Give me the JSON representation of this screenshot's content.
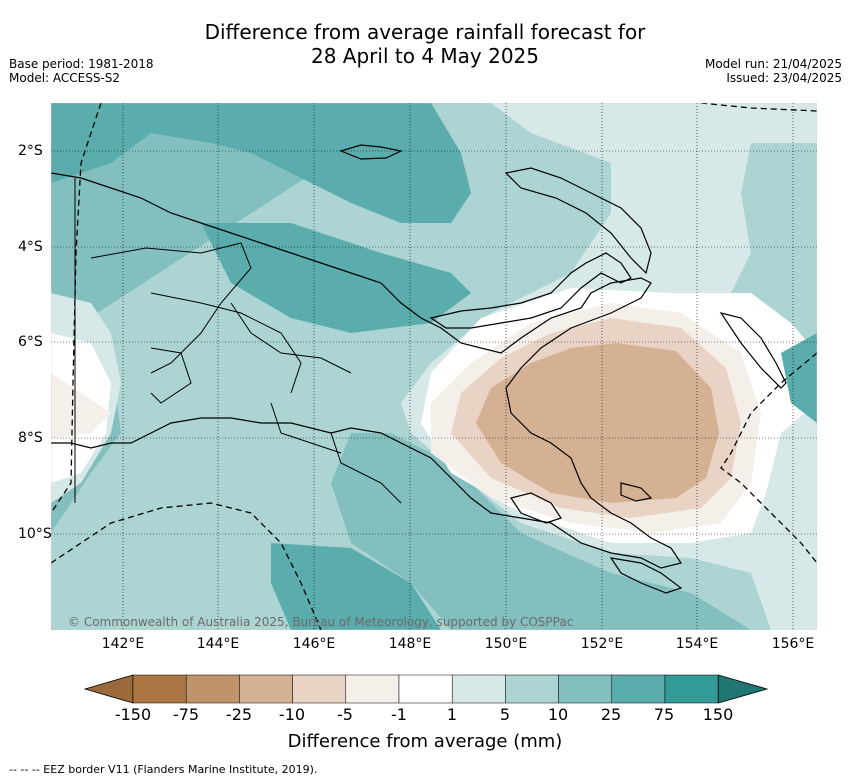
{
  "title_line1": "Difference from average rainfall forecast for",
  "title_line2": "28 April to 4 May 2025",
  "meta_left": [
    "Base period: 1981-2018",
    "Model: ACCESS-S2"
  ],
  "meta_right": [
    "Model run: 21/04/2025",
    "Issued: 23/04/2025"
  ],
  "lon_ticks": [
    "142°E",
    "144°E",
    "146°E",
    "148°E",
    "150°E",
    "152°E",
    "154°E",
    "156°E"
  ],
  "lat_ticks": [
    "2°S",
    "4°S",
    "6°S",
    "8°S",
    "10°S"
  ],
  "copyright": "© Commonwealth of Australia 2025, Bureau of Meteorology, supported by COSPPac",
  "colorbar": {
    "labels": [
      "-150",
      "-75",
      "-25",
      "-10",
      "-5",
      "-1",
      "1",
      "5",
      "10",
      "25",
      "75",
      "150"
    ],
    "colors": [
      "#9c6a3a",
      "#ab7643",
      "#c1936a",
      "#d5b193",
      "#e8d3c4",
      "#f4efe9",
      "#ffffff",
      "#d6e9e8",
      "#acd4d3",
      "#83bfbf",
      "#5aacad",
      "#329b98",
      "#207673"
    ],
    "title": "Difference from average (mm)"
  },
  "footnote": "--  --  -- EEZ border V11 (Flanders Marine Institute, 2019).",
  "map_colors": {
    "c25": "#5aacad",
    "c10": "#83bfbf",
    "c5": "#acd4d3",
    "c1": "#d6e9e8",
    "neutral": "#ffffff",
    "m1": "#f4efe9",
    "m5": "#e8d3c4",
    "m10": "#d5b193",
    "m25": "#c1936a"
  }
}
